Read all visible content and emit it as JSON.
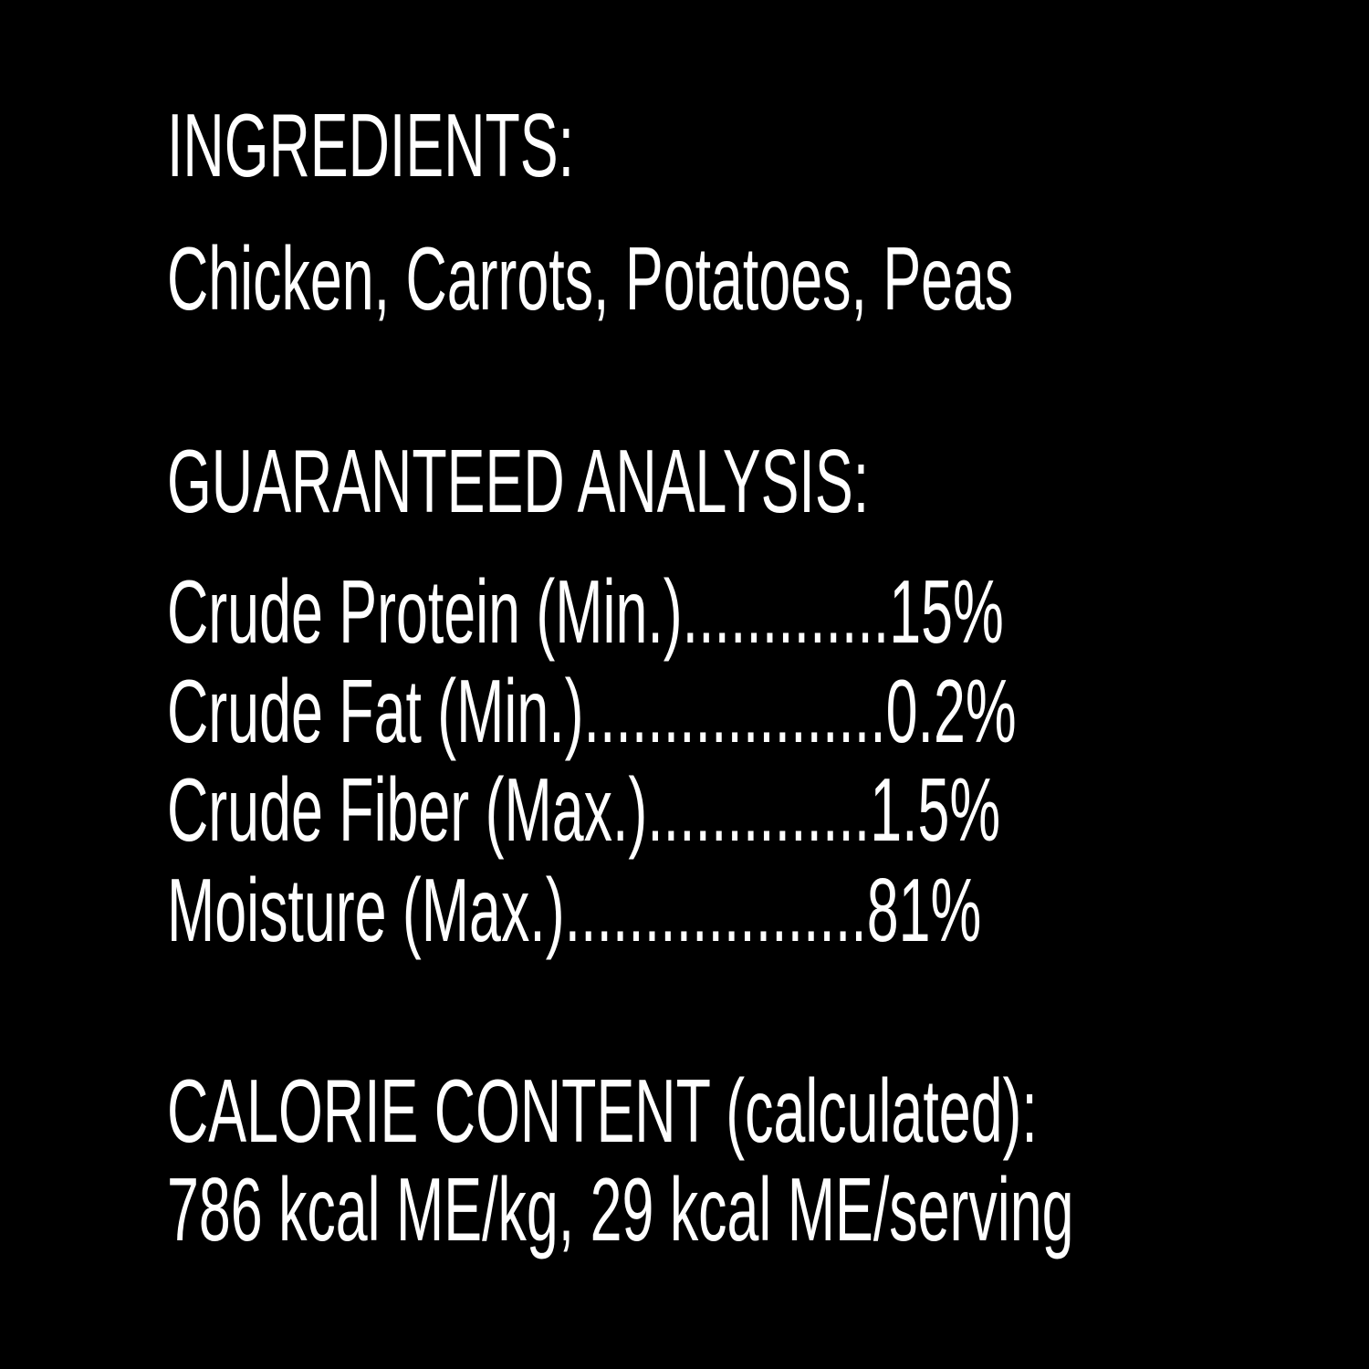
{
  "ingredients": {
    "heading": "INGREDIENTS:",
    "text": "Chicken, Carrots, Potatoes, Peas"
  },
  "analysis": {
    "heading": "GUARANTEED ANALYSIS:",
    "rows": [
      {
        "label": "Crude Protein (Min.)",
        "dots": ".............",
        "value": "15%"
      },
      {
        "label": "Crude Fat (Min.)",
        "dots": "...................",
        "value": "0.2%"
      },
      {
        "label": "Crude Fiber (Max.)",
        "dots": "..............",
        "value": "1.5%"
      },
      {
        "label": "Moisture (Max.)",
        "dots": "...................",
        "value": "81%"
      }
    ]
  },
  "calorie": {
    "heading": "CALORIE CONTENT (calculated):",
    "text": "786 kcal ME/kg, 29 kcal ME/serving"
  },
  "colors": {
    "background": "#000000",
    "text": "#ffffff"
  }
}
